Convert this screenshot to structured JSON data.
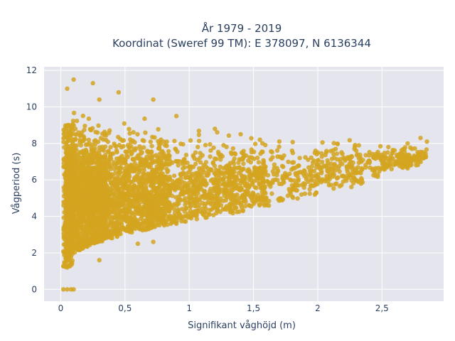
{
  "chart_data": {
    "type": "scatter",
    "title_lines": [
      "År 1979 - 2019",
      "Koordinat (Sweref 99 TM): E 378097, N 6136344"
    ],
    "xlabel": "Signifikant våghöjd (m)",
    "ylabel": "Vågperiod (s)",
    "xlim": [
      -0.13,
      2.98
    ],
    "ylim": [
      -0.65,
      12.2
    ],
    "x_ticks": [
      0,
      0.5,
      1,
      1.5,
      2,
      2.5
    ],
    "x_tick_labels": [
      "0",
      "0,5",
      "1",
      "1,5",
      "2",
      "2,5"
    ],
    "y_ticks": [
      0,
      2,
      4,
      6,
      8,
      10,
      12
    ],
    "y_tick_labels": [
      "0",
      "2",
      "4",
      "6",
      "8",
      "10",
      "12"
    ],
    "grid": true,
    "marker_color": "#d4a520",
    "plot_bg": "#e5e5ee",
    "points_approx": [
      [
        0.02,
        0
      ],
      [
        0.05,
        0
      ],
      [
        0.08,
        0
      ],
      [
        0.1,
        0
      ],
      [
        0.05,
        11.0
      ],
      [
        0.1,
        11.5
      ],
      [
        0.25,
        11.3
      ],
      [
        0.3,
        10.4
      ],
      [
        0.45,
        10.8
      ],
      [
        0.72,
        10.4
      ],
      [
        0.9,
        9.5
      ],
      [
        1.2,
        8.8
      ],
      [
        1.4,
        8.5
      ],
      [
        1.55,
        8.2
      ],
      [
        1.8,
        7.6
      ],
      [
        2.0,
        7.5
      ],
      [
        2.3,
        7.6
      ],
      [
        2.55,
        7.8
      ],
      [
        2.7,
        8.0
      ],
      [
        2.8,
        8.3
      ],
      [
        2.85,
        8.1
      ],
      [
        0.05,
        1.2
      ],
      [
        0.3,
        1.6
      ],
      [
        0.6,
        2.5
      ],
      [
        0.72,
        2.6
      ],
      [
        0.9,
        3.6
      ],
      [
        1.2,
        4.5
      ],
      [
        1.5,
        5.2
      ],
      [
        1.8,
        5.7
      ],
      [
        2.0,
        6.0
      ],
      [
        2.3,
        6.5
      ],
      [
        2.6,
        7.0
      ]
    ]
  }
}
